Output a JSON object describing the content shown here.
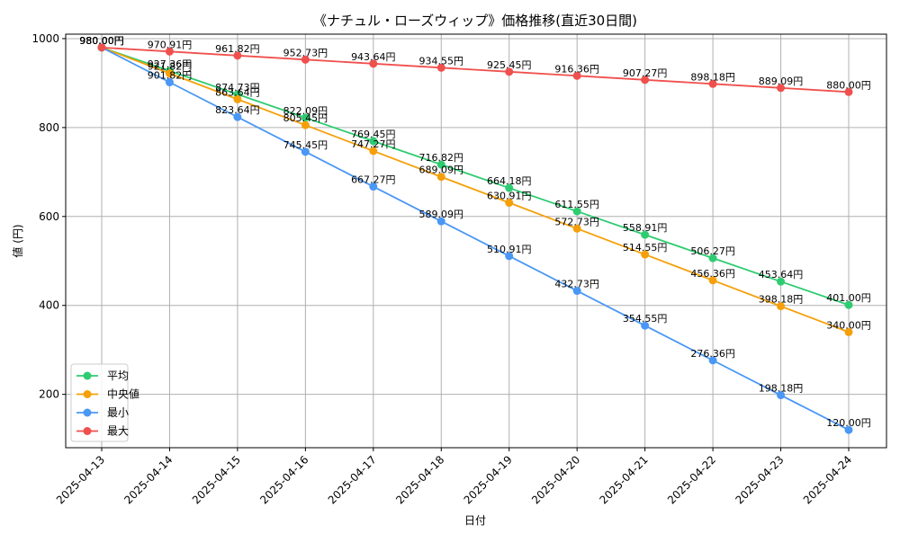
{
  "chart_data": {
    "type": "line",
    "title": "《ナチュル・ローズウィップ》価格推移(直近30日間)",
    "xlabel": "日付",
    "ylabel": "値 (円)",
    "ylim": [
      80,
      1010
    ],
    "yticks": [
      200,
      400,
      600,
      800,
      1000
    ],
    "grid": true,
    "legend_position": "bottom-left",
    "categories": [
      "2025-04-13",
      "2025-04-14",
      "2025-04-15",
      "2025-04-16",
      "2025-04-17",
      "2025-04-18",
      "2025-04-19",
      "2025-04-20",
      "2025-04-21",
      "2025-04-22",
      "2025-04-23",
      "2025-04-24"
    ],
    "label_suffix": "円",
    "series": [
      {
        "name": "平均",
        "color": "#2ecc71",
        "values": [
          980.0,
          927.36,
          874.73,
          822.09,
          769.45,
          716.82,
          664.18,
          611.55,
          558.91,
          506.27,
          453.64,
          401.0
        ]
      },
      {
        "name": "中央値",
        "color": "#f5a00a",
        "values": [
          980.0,
          921.82,
          863.64,
          805.45,
          747.27,
          689.09,
          630.91,
          572.73,
          514.55,
          456.36,
          398.18,
          340.0
        ]
      },
      {
        "name": "最小",
        "color": "#4a97f5",
        "values": [
          980.0,
          901.82,
          823.64,
          745.45,
          667.27,
          589.09,
          510.91,
          432.73,
          354.55,
          276.36,
          198.18,
          120.0
        ]
      },
      {
        "name": "最大",
        "color": "#f0504d",
        "values": [
          980.0,
          970.91,
          961.82,
          952.73,
          943.64,
          934.55,
          925.45,
          916.36,
          907.27,
          898.18,
          889.09,
          880.0
        ]
      }
    ]
  }
}
